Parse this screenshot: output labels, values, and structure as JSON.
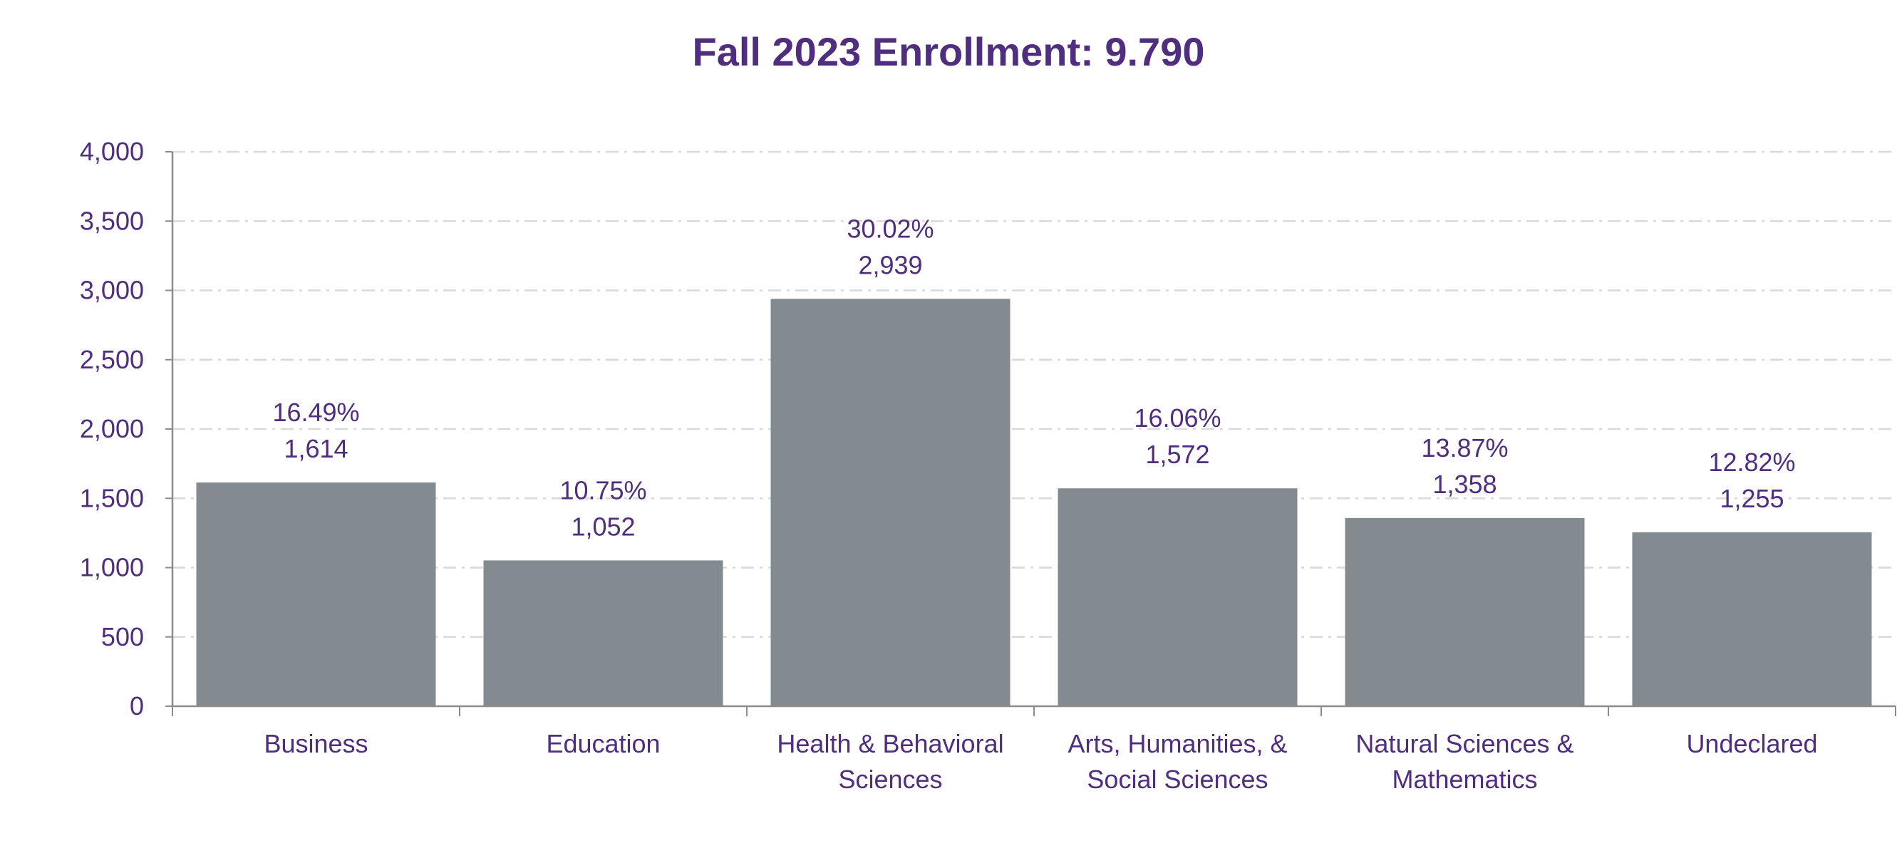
{
  "chart_data": {
    "type": "bar",
    "title": "Fall 2023 Enrollment: 9.790",
    "xlabel": "",
    "ylabel": "",
    "categories": [
      [
        "Business"
      ],
      [
        "Education"
      ],
      [
        "Health & Behavioral",
        "Sciences"
      ],
      [
        "Arts, Humanities, &",
        "Social Sciences"
      ],
      [
        "Natural Sciences &",
        "Mathematics"
      ],
      [
        "Undeclared"
      ]
    ],
    "values": [
      1614,
      1052,
      2939,
      1572,
      1358,
      1255
    ],
    "value_labels": [
      "1,614",
      "1,052",
      "2,939",
      "1,572",
      "1,358",
      "1,255"
    ],
    "percent_labels": [
      "16.49%",
      "10.75%",
      "30.02%",
      "16.06%",
      "13.87%",
      "12.82%"
    ],
    "ylim": [
      0,
      4000
    ],
    "yticks": [
      0,
      500,
      1000,
      1500,
      2000,
      2500,
      3000,
      3500,
      4000
    ],
    "ytick_labels": [
      "0",
      "500",
      "1,000",
      "1,500",
      "2,000",
      "2,500",
      "3,000",
      "3,500",
      "4,000"
    ],
    "grid": true,
    "grid_style": "dash-dot",
    "legend": "none",
    "colors": {
      "bar": "#838A90",
      "text": "#4F2D7F",
      "title": "#4F2D7F",
      "axis": "#8C8C8C",
      "grid": "#D9D9D9"
    }
  }
}
